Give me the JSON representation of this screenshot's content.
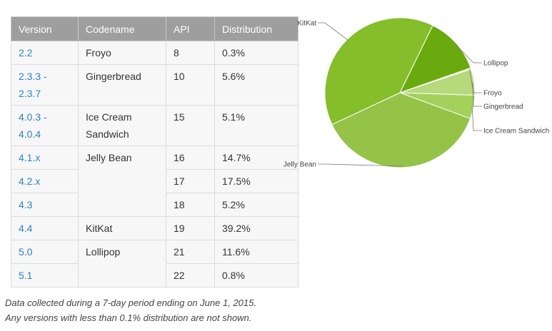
{
  "table": {
    "headers": [
      "Version",
      "Codename",
      "API",
      "Distribution"
    ],
    "rows": [
      {
        "version": "2.2",
        "codename": "Froyo",
        "api": "8",
        "distribution": "0.3%"
      },
      {
        "version": "2.3.3 - 2.3.7",
        "codename": "Gingerbread",
        "api": "10",
        "distribution": "5.6%"
      },
      {
        "version": "4.0.3 - 4.0.4",
        "codename": "Ice Cream Sandwich",
        "api": "15",
        "distribution": "5.1%"
      },
      {
        "version": "4.1.x",
        "codename": "Jelly Bean",
        "api": "16",
        "distribution": "14.7%"
      },
      {
        "version": "4.2.x",
        "codename": "",
        "api": "17",
        "distribution": "17.5%"
      },
      {
        "version": "4.3",
        "codename": "",
        "api": "18",
        "distribution": "5.2%"
      },
      {
        "version": "4.4",
        "codename": "KitKat",
        "api": "19",
        "distribution": "39.2%"
      },
      {
        "version": "5.0",
        "codename": "Lollipop",
        "api": "21",
        "distribution": "11.6%"
      },
      {
        "version": "5.1",
        "codename": "",
        "api": "22",
        "distribution": "0.8%"
      }
    ]
  },
  "notes": {
    "line1": "Data collected during a 7-day period ending on June 1, 2015.",
    "line2": "Any versions with less than 0.1% distribution are not shown."
  },
  "chart_data": {
    "type": "pie",
    "title": "",
    "categories": [
      "Lollipop",
      "Froyo",
      "Gingerbread",
      "Ice Cream Sandwich",
      "Jelly Bean",
      "KitKat"
    ],
    "values": [
      12.4,
      0.3,
      5.6,
      5.1,
      37.4,
      39.2
    ],
    "colors": [
      "#6aaa0e",
      "#d7e8b5",
      "#b6d97c",
      "#a4d15c",
      "#94c348",
      "#86bd2a"
    ],
    "legend": "none",
    "labels_position": "outside-with-leader-lines"
  }
}
